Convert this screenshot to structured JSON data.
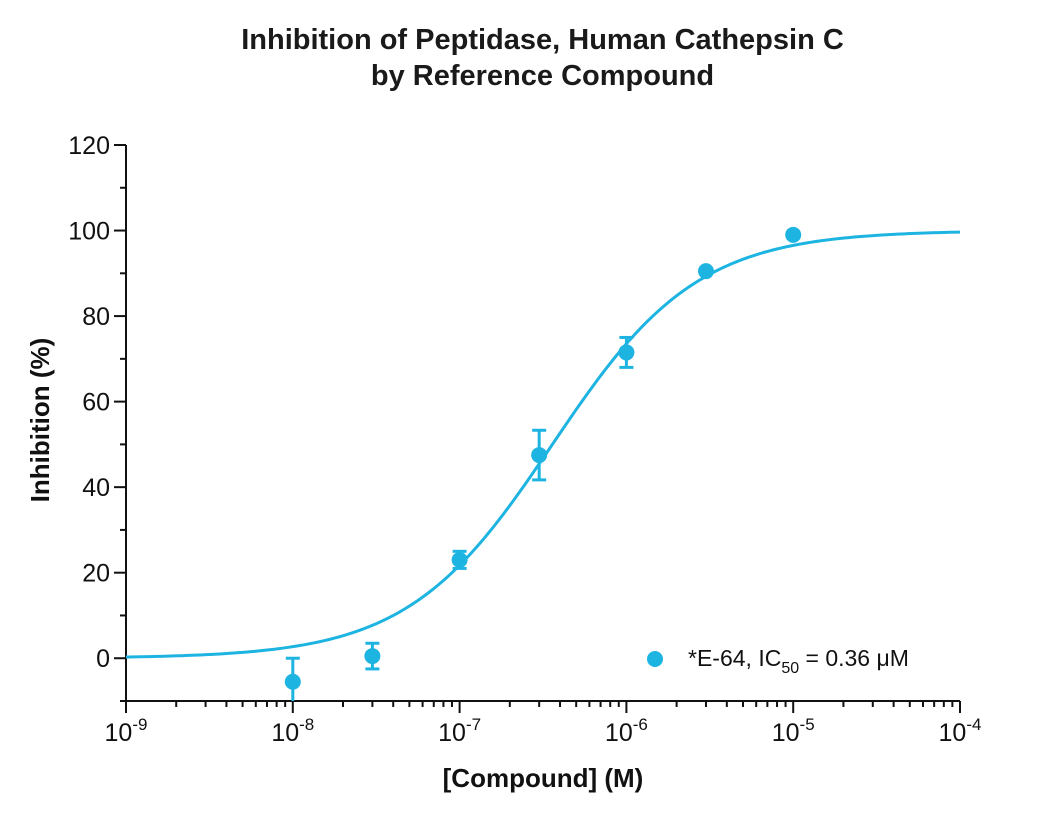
{
  "chart_data": {
    "type": "scatter",
    "title": [
      "Inhibition of Peptidase, Human Cathepsin C",
      "by Reference Compound"
    ],
    "xlabel": "[Compound] (M)",
    "ylabel": "Inhibition (%)",
    "x_scale": "log",
    "xlim": [
      1e-09,
      0.0001
    ],
    "ylim": [
      -10,
      120
    ],
    "x_ticks": [
      {
        "value": 1e-09,
        "base": "10",
        "exp": "-9"
      },
      {
        "value": 1e-08,
        "base": "10",
        "exp": "-8"
      },
      {
        "value": 1e-07,
        "base": "10",
        "exp": "-7"
      },
      {
        "value": 1e-06,
        "base": "10",
        "exp": "-6"
      },
      {
        "value": 1e-05,
        "base": "10",
        "exp": "-5"
      },
      {
        "value": 0.0001,
        "base": "10",
        "exp": "-4"
      }
    ],
    "y_ticks": [
      "0",
      "20",
      "40",
      "60",
      "80",
      "100",
      "120"
    ],
    "grid": false,
    "legend_position": "bottom-right",
    "series": [
      {
        "name": "*E-64, IC50 = 0.36 μM",
        "legend_parts": {
          "prefix": "*E-64, IC",
          "sub": "50",
          "suffix": " = 0.36 μM"
        },
        "color": "#1EB4E2",
        "points": [
          {
            "x": 1e-08,
            "y": -5.5,
            "err": 5.5
          },
          {
            "x": 3e-08,
            "y": 0.5,
            "err": 3
          },
          {
            "x": 1e-07,
            "y": 23,
            "err": 2
          },
          {
            "x": 3e-07,
            "y": 47.5,
            "err": 5.8
          },
          {
            "x": 1e-06,
            "y": 71.5,
            "err": 3.5
          },
          {
            "x": 3e-06,
            "y": 90.5,
            "err": 0
          },
          {
            "x": 1e-05,
            "y": 99,
            "err": 0
          }
        ],
        "fit": {
          "model": "four-parameter logistic",
          "bottom": 0,
          "top": 100,
          "ic50": 3.6e-07,
          "hill": 1
        }
      }
    ]
  }
}
